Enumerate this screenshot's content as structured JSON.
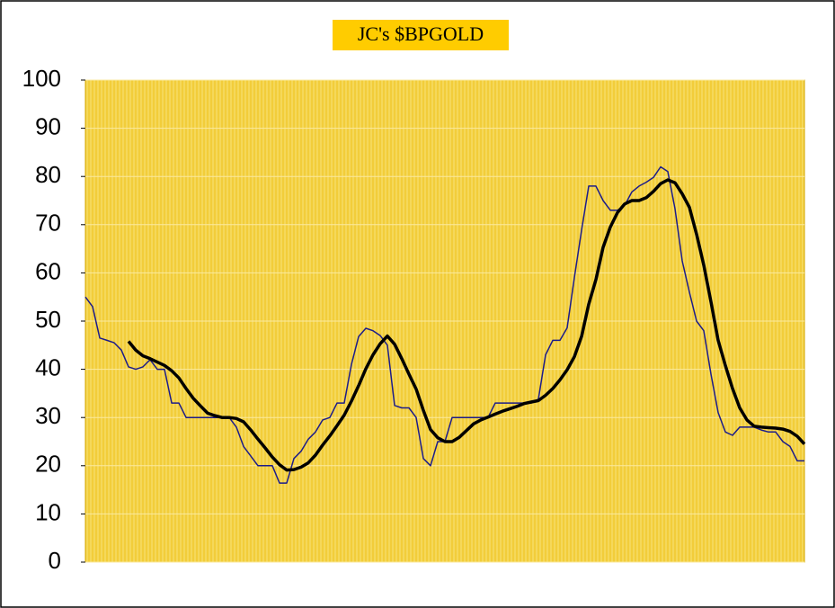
{
  "chart_data": {
    "type": "line",
    "title": "JC's $BPGOLD",
    "categories": [
      null,
      null,
      null,
      null,
      null,
      null,
      null,
      null,
      null,
      null,
      null,
      null,
      null,
      null,
      null,
      null,
      null,
      null,
      null,
      null,
      null,
      null,
      null,
      null,
      null,
      null,
      null,
      null,
      null,
      null,
      null,
      null,
      null,
      null,
      null,
      null,
      null,
      null,
      null,
      null,
      null,
      null,
      null,
      null,
      null,
      null,
      null,
      null,
      null,
      null,
      null,
      null,
      null,
      null,
      null,
      null,
      null,
      null,
      null,
      null,
      null,
      null,
      null,
      null,
      null,
      null,
      null,
      null,
      null,
      null,
      null,
      null,
      null,
      null,
      null,
      null,
      null,
      null,
      null,
      null,
      null,
      null,
      null,
      null,
      null,
      null,
      null,
      null,
      null,
      null,
      null,
      null,
      null,
      null,
      null,
      null,
      null,
      null,
      null,
      null,
      null
    ],
    "series": [
      {
        "color": "#1c1c8a",
        "values": [
          55,
          53,
          46.5,
          46,
          45.5,
          44,
          40.5,
          40,
          40.5,
          42,
          40,
          40,
          33,
          33,
          30,
          30,
          30,
          30,
          30,
          30,
          30,
          28,
          24,
          22,
          20,
          20,
          20,
          16.4,
          16.4,
          21.5,
          23,
          25.5,
          27,
          29.5,
          30,
          33,
          33,
          41,
          46.8,
          48.5,
          48,
          47,
          45,
          32.5,
          32,
          32,
          30,
          21.5,
          20,
          25,
          25,
          30,
          30,
          30,
          30,
          30,
          30,
          33,
          33,
          33,
          33,
          33,
          33,
          33.8,
          43,
          46,
          46,
          48.6,
          59,
          68.8,
          78,
          78,
          75,
          73,
          73,
          74,
          76.8,
          78,
          78.8,
          79.8,
          82,
          81,
          73.3,
          62.5,
          56,
          50,
          48,
          39,
          31,
          27,
          26.3,
          28,
          28,
          28,
          27.4,
          27,
          27,
          25,
          24,
          21,
          21
        ]
      },
      {
        "color": "#000000",
        "values": [
          null,
          null,
          null,
          null,
          null,
          null,
          45.8,
          44,
          42.8,
          42.2,
          41.5,
          40.8,
          39.7,
          38.2,
          36,
          34,
          32.4,
          30.9,
          30.4,
          30,
          30,
          29.8,
          29.1,
          27.4,
          25.5,
          23.7,
          21.8,
          20.2,
          19.1,
          19.2,
          19.7,
          20.6,
          22.2,
          24.3,
          26.2,
          28.3,
          30.5,
          33.4,
          36.6,
          40.1,
          43,
          45.3,
          46.9,
          45.2,
          42.2,
          39,
          35.9,
          31.5,
          27.5,
          25.8,
          25,
          25,
          25.9,
          27.3,
          28.7,
          29.5,
          30.1,
          30.7,
          31.3,
          31.8,
          32.3,
          32.9,
          33.2,
          33.5,
          34.6,
          36,
          37.8,
          39.9,
          42.6,
          46.8,
          53.5,
          58.6,
          65.3,
          69.5,
          72.5,
          74.3,
          75,
          75,
          75.6,
          76.9,
          78.5,
          79.3,
          78.7,
          76.4,
          73.6,
          68,
          61.6,
          54,
          46,
          40.8,
          36,
          32,
          29.5,
          28.2,
          28,
          27.9,
          27.8,
          27.6,
          27.1,
          26.1,
          24.5
        ]
      }
    ],
    "ylim": [
      0,
      100
    ],
    "yticks": [
      0,
      10,
      20,
      30,
      40,
      50,
      60,
      70,
      80,
      90,
      100
    ],
    "grid": true
  }
}
